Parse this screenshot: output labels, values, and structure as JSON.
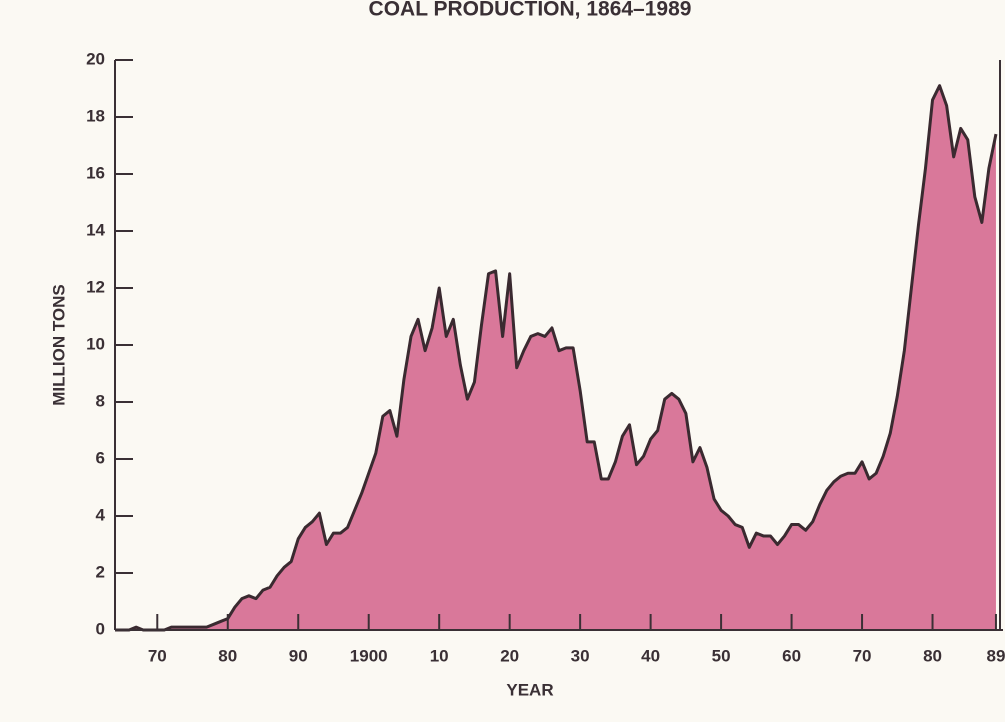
{
  "chart_data": {
    "type": "area",
    "title": "COAL PRODUCTION, 1864–1989",
    "xlabel": "YEAR",
    "ylabel": "MILLION TONS",
    "color": "#d9789a",
    "x": [
      1864,
      1865,
      1866,
      1867,
      1868,
      1869,
      1870,
      1871,
      1872,
      1873,
      1874,
      1875,
      1876,
      1877,
      1878,
      1879,
      1880,
      1881,
      1882,
      1883,
      1884,
      1885,
      1886,
      1887,
      1888,
      1889,
      1890,
      1891,
      1892,
      1893,
      1894,
      1895,
      1896,
      1897,
      1898,
      1899,
      1900,
      1901,
      1902,
      1903,
      1904,
      1905,
      1906,
      1907,
      1908,
      1909,
      1910,
      1911,
      1912,
      1913,
      1914,
      1915,
      1916,
      1917,
      1918,
      1919,
      1920,
      1921,
      1922,
      1923,
      1924,
      1925,
      1926,
      1927,
      1928,
      1929,
      1930,
      1931,
      1932,
      1933,
      1934,
      1935,
      1936,
      1937,
      1938,
      1939,
      1940,
      1941,
      1942,
      1943,
      1944,
      1945,
      1946,
      1947,
      1948,
      1949,
      1950,
      1951,
      1952,
      1953,
      1954,
      1955,
      1956,
      1957,
      1958,
      1959,
      1960,
      1961,
      1962,
      1963,
      1964,
      1965,
      1966,
      1967,
      1968,
      1969,
      1970,
      1971,
      1972,
      1973,
      1974,
      1975,
      1976,
      1977,
      1978,
      1979,
      1980,
      1981,
      1982,
      1983,
      1984,
      1985,
      1986,
      1987,
      1988,
      1989
    ],
    "values": [
      0,
      0,
      0,
      0.1,
      0,
      0,
      0,
      0,
      0.1,
      0.1,
      0.1,
      0.1,
      0.1,
      0.1,
      0.2,
      0.3,
      0.4,
      0.8,
      1.1,
      1.2,
      1.1,
      1.4,
      1.5,
      1.9,
      2.2,
      2.4,
      3.2,
      3.6,
      3.8,
      4.1,
      3.0,
      3.4,
      3.4,
      3.6,
      4.2,
      4.8,
      5.5,
      6.2,
      7.5,
      7.7,
      6.8,
      8.8,
      10.3,
      10.9,
      9.8,
      10.6,
      12.0,
      10.3,
      10.9,
      9.3,
      8.1,
      8.7,
      10.7,
      12.5,
      12.6,
      10.3,
      12.5,
      9.2,
      9.8,
      10.3,
      10.4,
      10.3,
      10.6,
      9.8,
      9.9,
      9.9,
      8.4,
      6.6,
      6.6,
      5.3,
      5.3,
      5.9,
      6.8,
      7.2,
      5.8,
      6.1,
      6.7,
      7.0,
      8.1,
      8.3,
      8.1,
      7.6,
      5.9,
      6.4,
      5.7,
      4.6,
      4.2,
      4.0,
      3.7,
      3.6,
      2.9,
      3.4,
      3.3,
      3.3,
      3.0,
      3.3,
      3.7,
      3.7,
      3.5,
      3.8,
      4.4,
      4.9,
      5.2,
      5.4,
      5.5,
      5.5,
      5.9,
      5.3,
      5.5,
      6.1,
      6.9,
      8.2,
      9.8,
      12.0,
      14.2,
      16.2,
      18.6,
      19.1,
      18.4,
      16.6,
      17.6,
      17.2,
      15.2,
      14.3,
      16.2,
      17.4
    ],
    "xlim": [
      1864,
      1990
    ],
    "xticks": [
      {
        "value": 1870,
        "label": "70"
      },
      {
        "value": 1880,
        "label": "80"
      },
      {
        "value": 1890,
        "label": "90"
      },
      1900,
      {
        "value": 1910,
        "label": "10"
      },
      {
        "value": 1920,
        "label": "20"
      },
      {
        "value": 1930,
        "label": "30"
      },
      {
        "value": 1940,
        "label": "40"
      },
      {
        "value": 1950,
        "label": "50"
      },
      {
        "value": 1960,
        "label": "60"
      },
      {
        "value": 1970,
        "label": "70"
      },
      {
        "value": 1980,
        "label": "80"
      },
      {
        "value": 1989,
        "label": "89"
      }
    ],
    "ylim": [
      0,
      20
    ],
    "yticks": [
      0,
      2,
      4,
      6,
      8,
      10,
      12,
      14,
      16,
      18,
      20
    ]
  }
}
